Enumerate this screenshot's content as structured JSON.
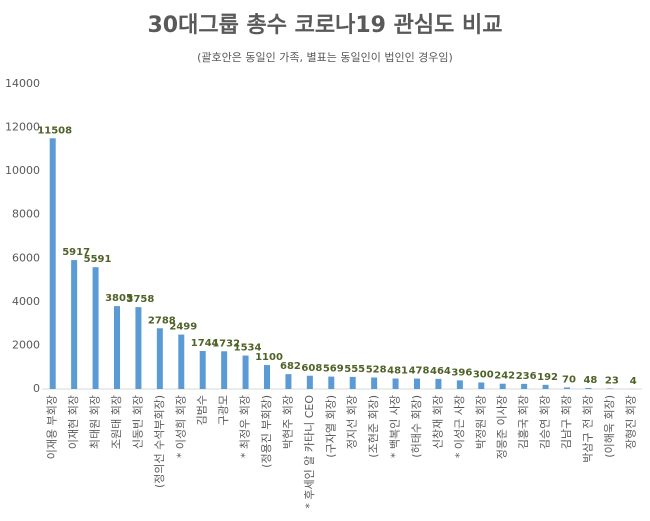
{
  "chart_data": {
    "type": "bar",
    "title": "30대그룹 총수 코로나19 관심도 비교",
    "subtitle": "(괄호안은 동일인 가족, 별표는 동일인이 법인인 경우임)",
    "categories": [
      "이재용 부회장",
      "이재현 회장",
      "최태원 회장",
      "조원태 회장",
      "신동빈 회장",
      "(정의선 수석부회장)",
      "* 이성희 회장",
      "김범수",
      "구광모",
      "* 최정우 회장",
      "(정용진 부회장)",
      "박현주 회장",
      "* 후세인 알 카타니 CEO",
      "(구자열 회장)",
      "정지선 회장",
      "(조현준 회장)",
      "* 백복인 사장",
      "(허태수 회장)",
      "신창재 회장",
      "* 이성근 사장",
      "박정원 회장",
      "정몽준 이사장",
      "김홍국 회장",
      "김승연 회장",
      "김남구 회장",
      "박삼구 전 회장",
      "(이해욱 회장)",
      "장형진 회장"
    ],
    "values": [
      11508,
      5917,
      5591,
      3805,
      3758,
      2788,
      2499,
      1744,
      1732,
      1534,
      1100,
      682,
      608,
      569,
      555,
      528,
      481,
      478,
      464,
      396,
      300,
      242,
      236,
      192,
      70,
      48,
      23,
      4
    ],
    "color": "#5b9bd5",
    "label_color": "#4f6228",
    "ylim": [
      0,
      14000
    ],
    "yticks": [
      0,
      2000,
      4000,
      6000,
      8000,
      10000,
      12000,
      14000
    ],
    "grid": false
  }
}
